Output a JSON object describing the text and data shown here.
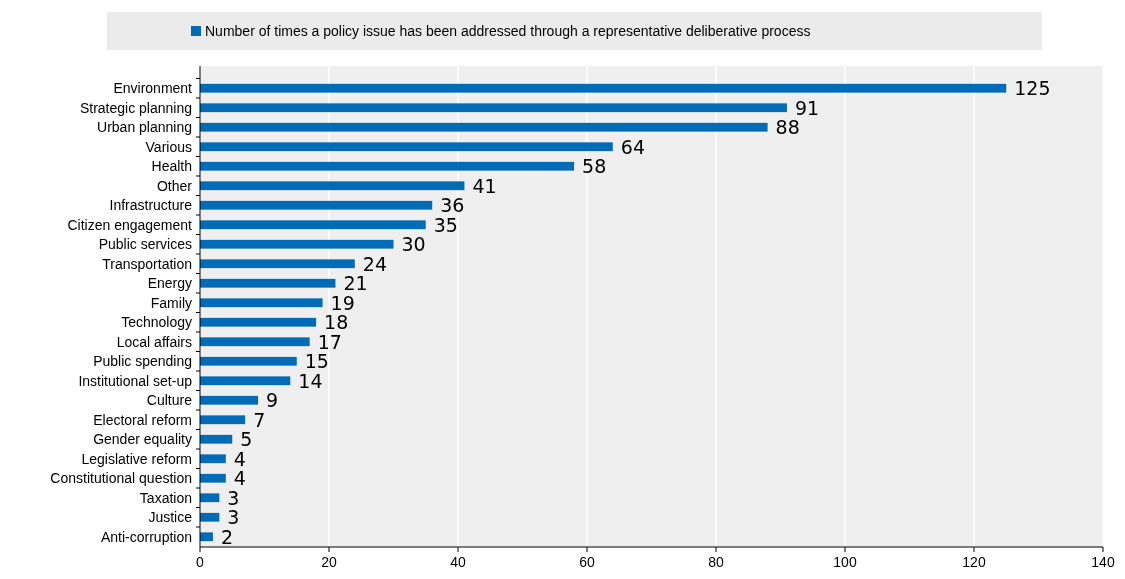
{
  "chart_data": {
    "type": "bar",
    "orientation": "horizontal",
    "categories": [
      "Environment",
      "Strategic planning",
      "Urban planning",
      "Various",
      "Health",
      "Other",
      "Infrastructure",
      "Citizen engagement",
      "Public services",
      "Transportation",
      "Energy",
      "Family",
      "Technology",
      "Local affairs",
      "Public spending",
      "Institutional set-up",
      "Culture",
      "Electoral reform",
      "Gender equality",
      "Legislative reform",
      "Constitutional question",
      "Taxation",
      "Justice",
      "Anti-corruption"
    ],
    "series": [
      {
        "name": "Number of times a policy issue has been addressed through a representative deliberative process",
        "color": "#006bb6",
        "values": [
          125,
          91,
          88,
          64,
          58,
          41,
          36,
          35,
          30,
          24,
          21,
          19,
          18,
          17,
          15,
          14,
          9,
          7,
          5,
          4,
          4,
          3,
          3,
          2
        ]
      }
    ],
    "xlim": [
      0,
      140
    ],
    "xticks": [
      0,
      20,
      40,
      60,
      80,
      100,
      120,
      140
    ],
    "grid": "x",
    "legend": "top",
    "data_labels": true
  }
}
